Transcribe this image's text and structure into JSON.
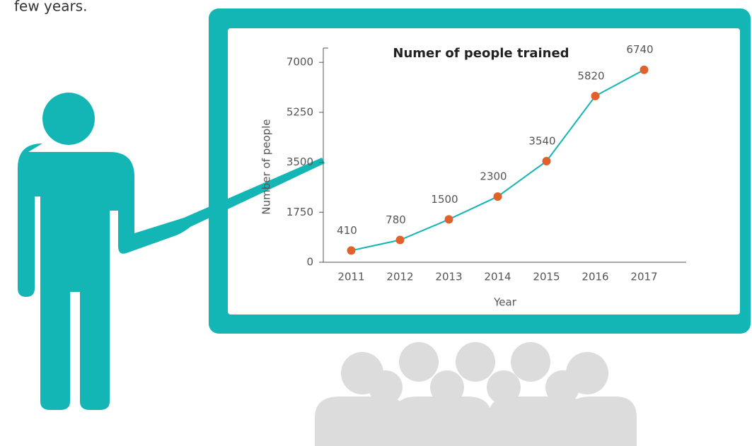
{
  "caption": "few years.",
  "chart_data": {
    "type": "line",
    "title": "Numer of people trained",
    "x_label": "Year",
    "y_label": "Number of people",
    "categories": [
      "2011",
      "2012",
      "2013",
      "2014",
      "2015",
      "2016",
      "2017"
    ],
    "values": [
      410,
      780,
      1500,
      2300,
      3540,
      5820,
      6740
    ],
    "line_color": "#14b5b5",
    "marker_color": "#e0622a",
    "ylim": [
      0,
      7500
    ],
    "yticks": [
      0,
      1750,
      3500,
      5250,
      7000
    ]
  }
}
